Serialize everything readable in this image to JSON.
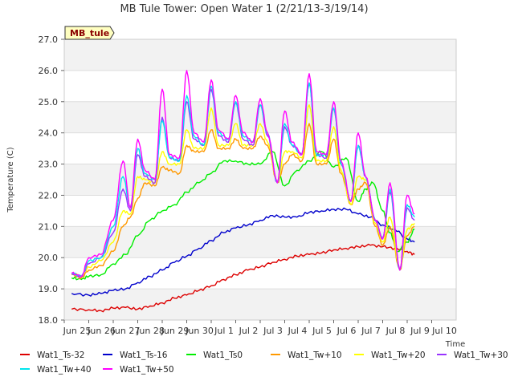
{
  "chart_data": {
    "type": "line",
    "title": "MB Tule Tower: Open Water 1 (2/21/13-3/19/14)",
    "site_label": "MB_tule",
    "xlabel": "Time",
    "ylabel": "Temperature (C)",
    "xlim": [
      0,
      16
    ],
    "ylim": [
      18.0,
      27.0
    ],
    "x_ticks": [
      {
        "x": 0,
        "label": "Jun 25"
      },
      {
        "x": 1,
        "label": "Jun 26"
      },
      {
        "x": 2,
        "label": "Jun 27"
      },
      {
        "x": 3,
        "label": "Jun 28"
      },
      {
        "x": 4,
        "label": "Jun 29"
      },
      {
        "x": 5,
        "label": "Jun 30"
      },
      {
        "x": 6,
        "label": "Jul 1"
      },
      {
        "x": 7,
        "label": "Jul 2"
      },
      {
        "x": 8,
        "label": "Jul 3"
      },
      {
        "x": 9,
        "label": "Jul 4"
      },
      {
        "x": 10,
        "label": "Jul 5"
      },
      {
        "x": 11,
        "label": "Jul 6"
      },
      {
        "x": 12,
        "label": "Jul 7"
      },
      {
        "x": 13,
        "label": "Jul 8"
      },
      {
        "x": 14,
        "label": "Jul 9"
      },
      {
        "x": 15,
        "label": "Jul 10"
      }
    ],
    "y_ticks": [
      {
        "y": 18.0,
        "label": "18.0"
      },
      {
        "y": 19.0,
        "label": "19.0"
      },
      {
        "y": 20.0,
        "label": "20.0"
      },
      {
        "y": 21.0,
        "label": "21.0"
      },
      {
        "y": 22.0,
        "label": "22.0"
      },
      {
        "y": 23.0,
        "label": "23.0"
      },
      {
        "y": 24.0,
        "label": "24.0"
      },
      {
        "y": 25.0,
        "label": "25.0"
      },
      {
        "y": 26.0,
        "label": "26.0"
      },
      {
        "y": 27.0,
        "label": "27.0"
      }
    ],
    "grid": "horizontal alternating bands",
    "legend_position": "bottom",
    "series": [
      {
        "name": "Wat1_Ts-32",
        "color": "#dd0000",
        "x": [
          0.3,
          1.0,
          1.5,
          2.0,
          2.5,
          3.0,
          3.5,
          4.0,
          4.5,
          5.0,
          5.5,
          6.0,
          6.5,
          7.0,
          7.5,
          8.0,
          8.5,
          9.0,
          9.5,
          10.0,
          10.5,
          11.0,
          11.5,
          12.0,
          12.5,
          13.0,
          13.5,
          14.0,
          14.3
        ],
        "values": [
          18.35,
          18.33,
          18.3,
          18.38,
          18.4,
          18.35,
          18.45,
          18.55,
          18.7,
          18.8,
          18.95,
          19.1,
          19.3,
          19.45,
          19.6,
          19.7,
          19.85,
          19.95,
          20.05,
          20.1,
          20.15,
          20.25,
          20.3,
          20.35,
          20.4,
          20.35,
          20.3,
          20.2,
          20.1
        ]
      },
      {
        "name": "Wat1_Ts-16",
        "color": "#0000cc",
        "x": [
          0.3,
          1.0,
          1.5,
          2.0,
          2.5,
          3.0,
          3.5,
          4.0,
          4.5,
          5.0,
          5.5,
          6.0,
          6.5,
          7.0,
          7.5,
          8.0,
          8.5,
          9.0,
          9.5,
          10.0,
          10.5,
          11.0,
          11.5,
          12.0,
          12.5,
          13.0,
          13.5,
          14.0,
          14.3
        ],
        "values": [
          18.85,
          18.8,
          18.85,
          18.95,
          19.0,
          19.2,
          19.4,
          19.6,
          19.85,
          20.05,
          20.3,
          20.55,
          20.8,
          20.95,
          21.05,
          21.2,
          21.35,
          21.3,
          21.3,
          21.45,
          21.5,
          21.55,
          21.55,
          21.4,
          21.3,
          21.05,
          20.9,
          20.6,
          20.5
        ]
      },
      {
        "name": "Wat1_Ts0",
        "color": "#00ee00",
        "x": [
          0.3,
          0.7,
          1.0,
          1.5,
          2.0,
          2.5,
          3.0,
          3.5,
          4.0,
          4.5,
          5.0,
          5.5,
          6.0,
          6.5,
          7.0,
          7.5,
          8.0,
          8.5,
          9.0,
          9.5,
          10.0,
          10.5,
          11.0,
          11.5,
          12.0,
          12.3,
          12.6,
          13.0,
          13.3,
          13.6,
          14.0,
          14.3
        ],
        "values": [
          19.35,
          19.3,
          19.4,
          19.45,
          19.8,
          20.1,
          20.7,
          21.2,
          21.5,
          21.7,
          22.1,
          22.4,
          22.7,
          23.1,
          23.1,
          23.0,
          23.0,
          23.4,
          22.3,
          22.8,
          23.1,
          23.4,
          22.9,
          23.2,
          21.8,
          22.2,
          22.4,
          21.5,
          20.8,
          20.2,
          20.5,
          20.9
        ]
      },
      {
        "name": "Wat1_Tw+10",
        "color": "#ff9900",
        "x": [
          0.3,
          0.7,
          1.0,
          1.5,
          2.0,
          2.4,
          2.7,
          3.0,
          3.3,
          3.7,
          4.0,
          4.3,
          4.7,
          5.0,
          5.3,
          5.7,
          6.0,
          6.3,
          6.7,
          7.0,
          7.3,
          7.7,
          8.0,
          8.3,
          8.7,
          9.0,
          9.3,
          9.7,
          10.0,
          10.3,
          10.7,
          11.0,
          11.3,
          11.7,
          12.0,
          12.3,
          12.7,
          13.0,
          13.3,
          13.7,
          14.0,
          14.3
        ],
        "values": [
          19.45,
          19.35,
          19.6,
          19.75,
          20.2,
          21.0,
          21.3,
          21.9,
          22.4,
          22.3,
          22.9,
          22.8,
          22.7,
          23.6,
          23.4,
          23.4,
          24.1,
          23.5,
          23.5,
          23.8,
          23.5,
          23.5,
          23.9,
          23.6,
          22.4,
          23.0,
          23.3,
          23.1,
          24.3,
          23.0,
          23.0,
          23.8,
          22.7,
          21.7,
          22.2,
          22.4,
          21.0,
          20.4,
          21.0,
          19.6,
          20.7,
          21.0
        ]
      },
      {
        "name": "Wat1_Tw+20",
        "color": "#ffff00",
        "x": [
          0.3,
          0.7,
          1.0,
          1.5,
          2.0,
          2.4,
          2.7,
          3.0,
          3.3,
          3.7,
          4.0,
          4.3,
          4.7,
          5.0,
          5.3,
          5.7,
          6.0,
          6.3,
          6.7,
          7.0,
          7.3,
          7.7,
          8.0,
          8.3,
          8.7,
          9.0,
          9.3,
          9.7,
          10.0,
          10.3,
          10.7,
          11.0,
          11.3,
          11.7,
          12.0,
          12.3,
          12.7,
          13.0,
          13.3,
          13.7,
          14.0,
          14.3
        ],
        "values": [
          19.5,
          19.4,
          19.7,
          19.9,
          20.5,
          21.5,
          21.4,
          22.6,
          22.5,
          22.4,
          23.4,
          23.0,
          23.0,
          24.1,
          23.5,
          23.5,
          24.8,
          23.6,
          23.6,
          24.3,
          23.6,
          23.6,
          24.3,
          23.7,
          22.4,
          23.4,
          23.4,
          23.2,
          24.9,
          23.1,
          23.1,
          24.2,
          22.8,
          21.7,
          22.6,
          22.5,
          21.1,
          20.5,
          21.3,
          19.6,
          20.9,
          21.1
        ]
      },
      {
        "name": "Wat1_Tw+30",
        "color": "#9933ff",
        "x": [
          0.3,
          0.7,
          1.0,
          1.5,
          2.0,
          2.4,
          2.7,
          3.0,
          3.3,
          3.7,
          4.0,
          4.3,
          4.7,
          5.0,
          5.3,
          5.7,
          6.0,
          6.3,
          6.7,
          7.0,
          7.3,
          7.7,
          8.0,
          8.3,
          8.7,
          9.0,
          9.3,
          9.7,
          10.0,
          10.3,
          10.7,
          11.0,
          11.3,
          11.7,
          12.0,
          12.3,
          12.7,
          13.0,
          13.3,
          13.7,
          14.0,
          14.3
        ],
        "values": [
          19.5,
          19.4,
          19.8,
          20.0,
          20.8,
          22.2,
          21.5,
          23.3,
          22.6,
          22.4,
          24.5,
          23.2,
          23.1,
          25.0,
          23.8,
          23.6,
          25.4,
          23.9,
          23.7,
          25.0,
          23.8,
          23.6,
          24.9,
          23.9,
          22.4,
          24.2,
          23.6,
          23.3,
          25.6,
          23.3,
          23.2,
          24.8,
          23.0,
          21.8,
          23.6,
          22.6,
          21.2,
          20.6,
          22.1,
          19.6,
          21.6,
          21.2
        ]
      },
      {
        "name": "Wat1_Tw+40",
        "color": "#00e5ee",
        "x": [
          0.3,
          0.7,
          1.0,
          1.5,
          2.0,
          2.4,
          2.7,
          3.0,
          3.3,
          3.7,
          4.0,
          4.3,
          4.7,
          5.0,
          5.3,
          5.7,
          6.0,
          6.3,
          6.7,
          7.0,
          7.3,
          7.7,
          8.0,
          8.3,
          8.7,
          9.0,
          9.3,
          9.7,
          10.0,
          10.3,
          10.7,
          11.0,
          11.3,
          11.7,
          12.0,
          12.3,
          12.7,
          13.0,
          13.3,
          13.7,
          14.0,
          14.3
        ],
        "values": [
          19.5,
          19.4,
          19.9,
          20.0,
          21.0,
          22.6,
          21.6,
          23.5,
          22.7,
          22.5,
          24.4,
          23.2,
          23.1,
          25.2,
          23.9,
          23.6,
          25.5,
          24.0,
          23.8,
          25.0,
          23.9,
          23.7,
          24.9,
          24.0,
          22.4,
          24.3,
          23.6,
          23.3,
          25.6,
          23.3,
          23.3,
          24.8,
          23.0,
          21.8,
          23.6,
          22.6,
          21.2,
          20.6,
          22.2,
          19.6,
          21.7,
          21.3
        ]
      },
      {
        "name": "Wat1_Tw+50",
        "color": "#ff00ff",
        "x": [
          0.3,
          0.7,
          1.0,
          1.5,
          2.0,
          2.4,
          2.7,
          3.0,
          3.3,
          3.7,
          4.0,
          4.3,
          4.7,
          5.0,
          5.3,
          5.7,
          6.0,
          6.3,
          6.7,
          7.0,
          7.3,
          7.7,
          8.0,
          8.3,
          8.7,
          9.0,
          9.3,
          9.7,
          10.0,
          10.3,
          10.7,
          11.0,
          11.3,
          11.7,
          12.0,
          12.3,
          12.7,
          13.0,
          13.3,
          13.7,
          14.0,
          14.3
        ],
        "values": [
          19.5,
          19.4,
          20.0,
          20.1,
          21.2,
          23.1,
          21.6,
          23.8,
          22.8,
          22.5,
          25.4,
          23.3,
          23.2,
          26.0,
          24.0,
          23.7,
          25.7,
          24.1,
          23.8,
          25.2,
          24.0,
          23.7,
          25.1,
          24.0,
          22.4,
          24.7,
          23.7,
          23.3,
          25.9,
          23.4,
          23.3,
          25.0,
          23.1,
          21.8,
          24.0,
          22.6,
          21.2,
          20.6,
          22.4,
          19.6,
          22.0,
          21.4
        ]
      }
    ]
  }
}
